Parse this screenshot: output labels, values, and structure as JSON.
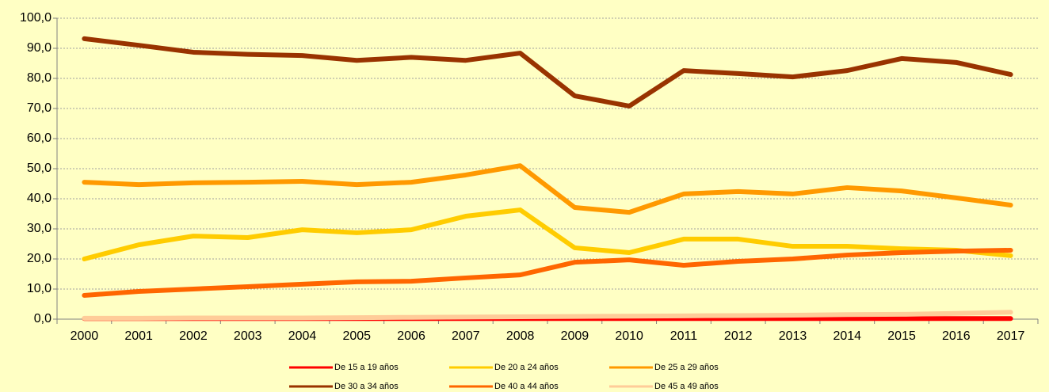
{
  "chart_data": {
    "type": "line",
    "categories": [
      "2000",
      "2001",
      "2002",
      "2003",
      "2004",
      "2005",
      "2006",
      "2007",
      "2008",
      "2009",
      "2010",
      "2011",
      "2012",
      "2013",
      "2014",
      "2015",
      "2016",
      "2017"
    ],
    "series": [
      {
        "name": "De 15 a 19 años",
        "color": "#ff0000",
        "values": [
          0.2,
          0.2,
          0.2,
          0.2,
          0.2,
          0.2,
          0.2,
          0.2,
          0.2,
          0.2,
          0.2,
          0.2,
          0.2,
          0.2,
          0.2,
          0.2,
          0.2,
          0.2
        ]
      },
      {
        "name": "De 20 a 24 años",
        "color": "#ffcc00",
        "values": [
          20,
          24.7,
          27.6,
          27.1,
          29.7,
          28.7,
          29.7,
          34.2,
          36.3,
          23.7,
          22.1,
          26.6,
          26.6,
          24.2,
          24.2,
          23.4,
          22.9,
          21.1
        ]
      },
      {
        "name": "De 25 a 29 años",
        "color": "#ff9900",
        "values": [
          45.5,
          44.7,
          45.3,
          45.5,
          45.8,
          44.7,
          45.5,
          47.9,
          51,
          37.1,
          35.5,
          41.6,
          42.4,
          41.6,
          43.7,
          42.6,
          40.3,
          37.9
        ]
      },
      {
        "name": "De 30 a 34 años",
        "color": "#993300",
        "values": [
          93.2,
          91,
          88.7,
          88,
          87.6,
          86,
          87,
          86,
          88.4,
          74.2,
          70.8,
          82.6,
          81.6,
          80.5,
          82.6,
          86.6,
          85.3,
          81.3
        ]
      },
      {
        "name": "De 40 a 44 años",
        "color": "#ff6600",
        "values": [
          7.9,
          9.2,
          10,
          10.8,
          11.6,
          12.4,
          12.6,
          13.7,
          14.7,
          18.9,
          19.7,
          17.9,
          19.2,
          20,
          21.3,
          22.1,
          22.6,
          22.9
        ]
      },
      {
        "name": "De 45 a 49 años",
        "color": "#ffcc99",
        "values": [
          0.3,
          0.3,
          0.4,
          0.4,
          0.4,
          0.5,
          0.6,
          0.7,
          0.8,
          0.9,
          1.0,
          1.1,
          1.2,
          1.3,
          1.5,
          1.6,
          1.9,
          2.3
        ]
      }
    ],
    "ylim": [
      0,
      100
    ],
    "yticks": [
      {
        "value": 0,
        "label": "0,0"
      },
      {
        "value": 10,
        "label": "10,0"
      },
      {
        "value": 20,
        "label": "20,0"
      },
      {
        "value": 30,
        "label": "30,0"
      },
      {
        "value": 40,
        "label": "40,0"
      },
      {
        "value": 50,
        "label": "50,0"
      },
      {
        "value": 60,
        "label": "60,0"
      },
      {
        "value": 70,
        "label": "70,0"
      },
      {
        "value": 80,
        "label": "80,0"
      },
      {
        "value": 90,
        "label": "90,0"
      },
      {
        "value": 100,
        "label": "100,0"
      }
    ],
    "grid": true
  }
}
